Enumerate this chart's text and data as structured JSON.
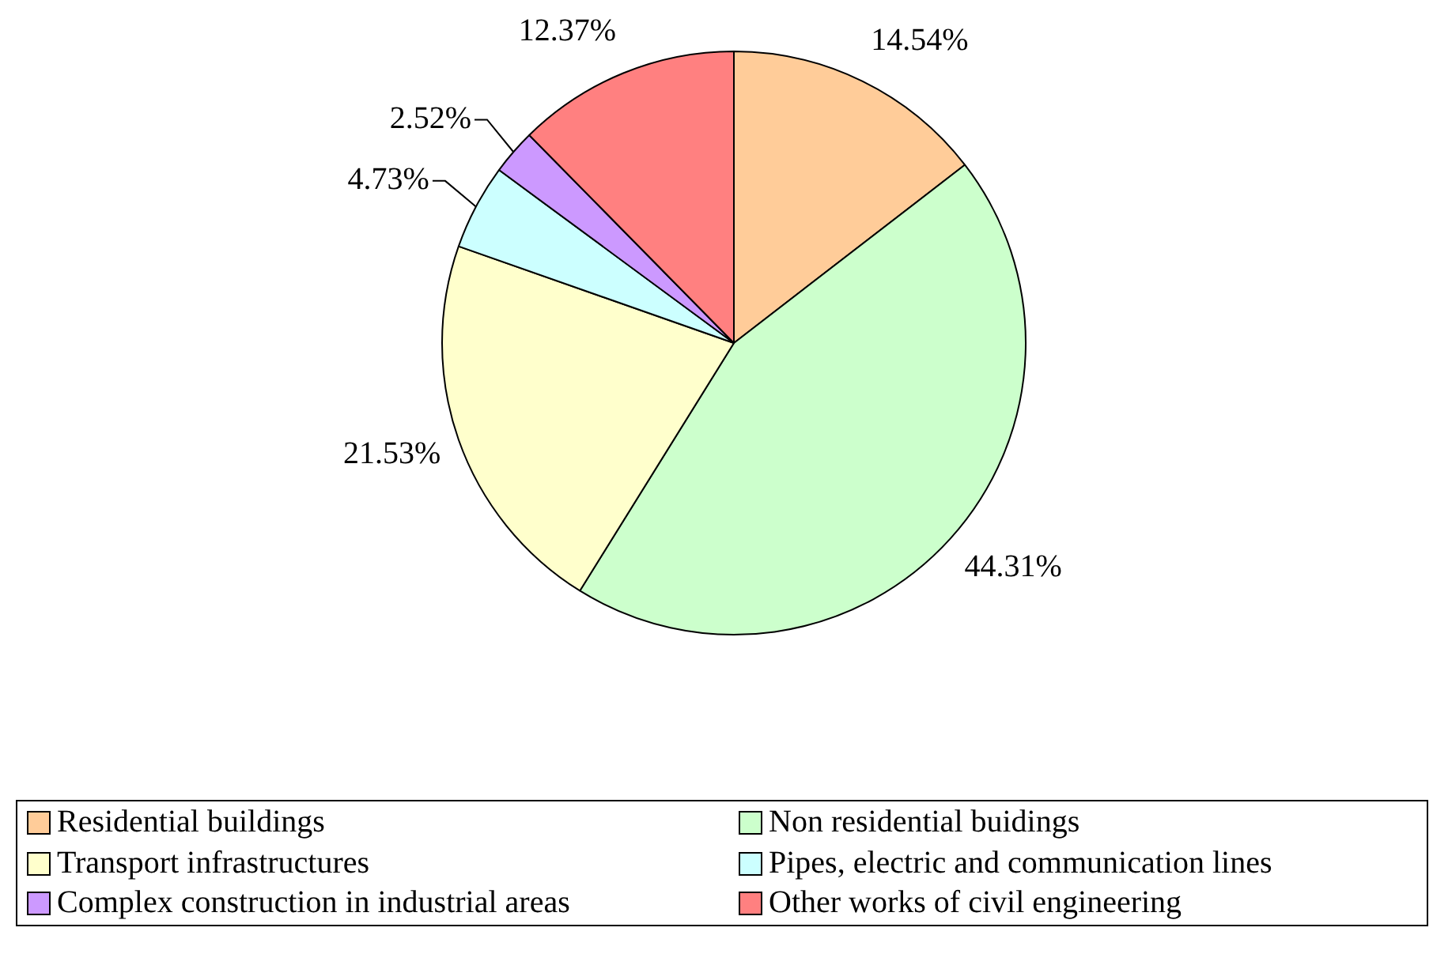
{
  "chart_data": {
    "type": "pie",
    "categories": [
      "Residential buildings",
      "Non residential buidings",
      "Transport infrastructures",
      "Pipes, electric and communication lines",
      "Complex construction in industrial areas",
      "Other works of civil engineering"
    ],
    "values": [
      14.54,
      44.31,
      21.53,
      4.73,
      2.52,
      12.37
    ],
    "colors": [
      "#ffcc99",
      "#ccffcc",
      "#ffffcc",
      "#ccffff",
      "#cc99ff",
      "#ff8080"
    ],
    "value_labels": [
      "14.54%",
      "44.31%",
      "21.53%",
      "4.73%",
      "2.52%",
      "12.37%"
    ],
    "legend": "bottom"
  }
}
